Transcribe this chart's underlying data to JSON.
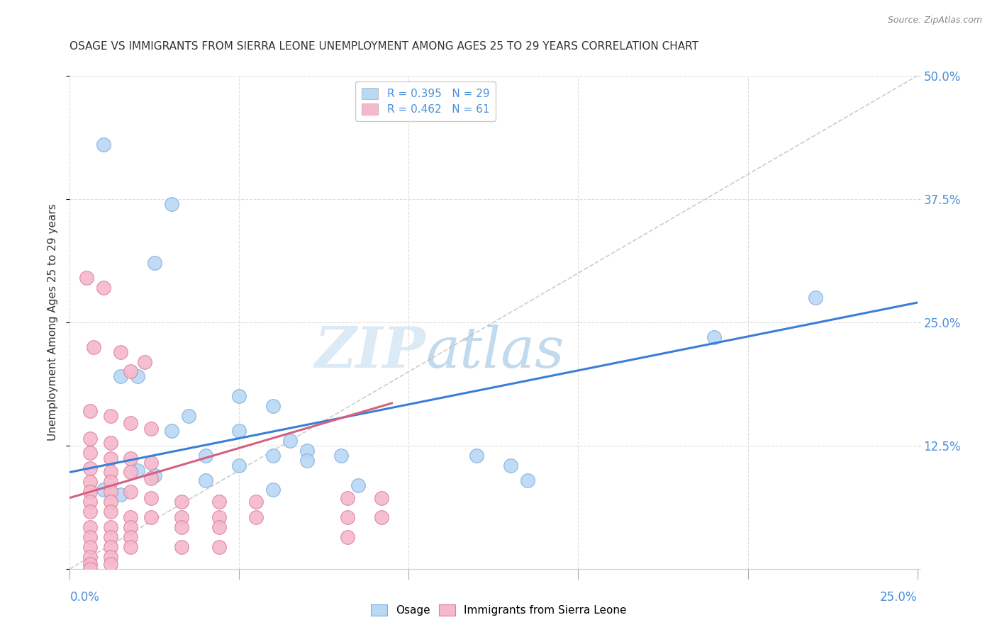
{
  "title": "OSAGE VS IMMIGRANTS FROM SIERRA LEONE UNEMPLOYMENT AMONG AGES 25 TO 29 YEARS CORRELATION CHART",
  "source": "Source: ZipAtlas.com",
  "ylabel": "Unemployment Among Ages 25 to 29 years",
  "xlim": [
    0.0,
    0.25
  ],
  "ylim": [
    0.0,
    0.5
  ],
  "xticks": [
    0.0,
    0.05,
    0.1,
    0.15,
    0.2,
    0.25
  ],
  "yticks": [
    0.0,
    0.125,
    0.25,
    0.375,
    0.5
  ],
  "right_ytick_labels": [
    "",
    "12.5%",
    "25.0%",
    "37.5%",
    "50.0%"
  ],
  "watermark_zip": "ZIP",
  "watermark_atlas": "atlas",
  "legend_entries": [
    {
      "label": "R = 0.395   N = 29",
      "color": "#b8d8f5"
    },
    {
      "label": "R = 0.462   N = 61",
      "color": "#f5b8cc"
    }
  ],
  "osage_color": "#b8d8f5",
  "osage_edge": "#80aedd",
  "sierra_color": "#f5b8cc",
  "sierra_edge": "#dd8099",
  "blue_line_color": "#3a7fd5",
  "pink_line_color": "#d56080",
  "diag_line_color": "#cccccc",
  "osage_points": [
    [
      0.01,
      0.43
    ],
    [
      0.03,
      0.37
    ],
    [
      0.025,
      0.31
    ],
    [
      0.015,
      0.195
    ],
    [
      0.02,
      0.195
    ],
    [
      0.05,
      0.175
    ],
    [
      0.06,
      0.165
    ],
    [
      0.035,
      0.155
    ],
    [
      0.03,
      0.14
    ],
    [
      0.05,
      0.14
    ],
    [
      0.065,
      0.13
    ],
    [
      0.07,
      0.12
    ],
    [
      0.08,
      0.115
    ],
    [
      0.04,
      0.115
    ],
    [
      0.06,
      0.115
    ],
    [
      0.05,
      0.105
    ],
    [
      0.07,
      0.11
    ],
    [
      0.02,
      0.1
    ],
    [
      0.025,
      0.095
    ],
    [
      0.04,
      0.09
    ],
    [
      0.085,
      0.085
    ],
    [
      0.01,
      0.08
    ],
    [
      0.015,
      0.075
    ],
    [
      0.06,
      0.08
    ],
    [
      0.12,
      0.115
    ],
    [
      0.13,
      0.105
    ],
    [
      0.135,
      0.09
    ],
    [
      0.19,
      0.235
    ],
    [
      0.22,
      0.275
    ]
  ],
  "sierra_points": [
    [
      0.005,
      0.295
    ],
    [
      0.01,
      0.285
    ],
    [
      0.007,
      0.225
    ],
    [
      0.015,
      0.22
    ],
    [
      0.022,
      0.21
    ],
    [
      0.018,
      0.2
    ],
    [
      0.006,
      0.16
    ],
    [
      0.012,
      0.155
    ],
    [
      0.018,
      0.148
    ],
    [
      0.024,
      0.142
    ],
    [
      0.006,
      0.132
    ],
    [
      0.012,
      0.128
    ],
    [
      0.006,
      0.118
    ],
    [
      0.012,
      0.112
    ],
    [
      0.018,
      0.112
    ],
    [
      0.024,
      0.108
    ],
    [
      0.006,
      0.102
    ],
    [
      0.012,
      0.098
    ],
    [
      0.018,
      0.098
    ],
    [
      0.024,
      0.092
    ],
    [
      0.006,
      0.088
    ],
    [
      0.012,
      0.088
    ],
    [
      0.006,
      0.078
    ],
    [
      0.012,
      0.078
    ],
    [
      0.018,
      0.078
    ],
    [
      0.024,
      0.072
    ],
    [
      0.006,
      0.068
    ],
    [
      0.012,
      0.068
    ],
    [
      0.006,
      0.058
    ],
    [
      0.012,
      0.058
    ],
    [
      0.018,
      0.052
    ],
    [
      0.024,
      0.052
    ],
    [
      0.006,
      0.042
    ],
    [
      0.012,
      0.042
    ],
    [
      0.018,
      0.042
    ],
    [
      0.006,
      0.032
    ],
    [
      0.012,
      0.032
    ],
    [
      0.018,
      0.032
    ],
    [
      0.006,
      0.022
    ],
    [
      0.012,
      0.022
    ],
    [
      0.018,
      0.022
    ],
    [
      0.006,
      0.012
    ],
    [
      0.012,
      0.012
    ],
    [
      0.006,
      0.005
    ],
    [
      0.012,
      0.005
    ],
    [
      0.006,
      0.0
    ],
    [
      0.033,
      0.068
    ],
    [
      0.044,
      0.068
    ],
    [
      0.055,
      0.068
    ],
    [
      0.033,
      0.052
    ],
    [
      0.044,
      0.052
    ],
    [
      0.055,
      0.052
    ],
    [
      0.033,
      0.042
    ],
    [
      0.044,
      0.042
    ],
    [
      0.033,
      0.022
    ],
    [
      0.044,
      0.022
    ],
    [
      0.082,
      0.072
    ],
    [
      0.092,
      0.072
    ],
    [
      0.082,
      0.052
    ],
    [
      0.092,
      0.052
    ],
    [
      0.082,
      0.032
    ]
  ],
  "blue_line": {
    "x0": 0.0,
    "y0": 0.098,
    "x1": 0.25,
    "y1": 0.27
  },
  "pink_line": {
    "x0": 0.0,
    "y0": 0.072,
    "x1": 0.095,
    "y1": 0.168
  },
  "diag_line": {
    "x0": 0.0,
    "y0": 0.0,
    "x1": 0.25,
    "y1": 0.5
  },
  "background_color": "#ffffff",
  "grid_color": "#dddddd",
  "axis_color": "#4a90d9",
  "title_color": "#333333",
  "title_fontsize": 11,
  "ylabel_fontsize": 11,
  "tick_fontsize": 12,
  "legend_fontsize": 11,
  "source_fontsize": 9,
  "marker_size": 200
}
